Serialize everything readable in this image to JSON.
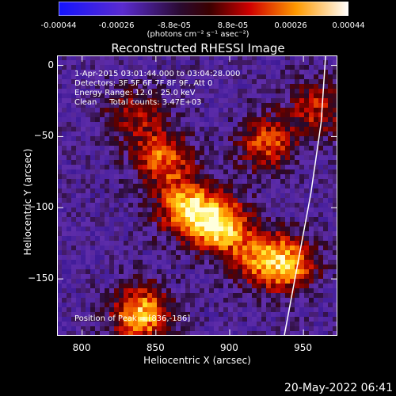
{
  "chart_data": {
    "type": "heatmap",
    "title": "Reconstructed RHESSI Image",
    "xlabel": "Heliocentric X (arcsec)",
    "ylabel": "Heliocentric Y (arcsec)",
    "xlim": [
      783,
      973
    ],
    "ylim": [
      -190,
      7
    ],
    "x_ticks": [
      800,
      850,
      900,
      950
    ],
    "y_ticks": [
      0,
      -50,
      -100,
      -150
    ],
    "colorbar": {
      "ticks": [
        "-0.00044",
        "-0.00026",
        "-8.8e-05",
        "8.8e-05",
        "0.00026",
        "0.00044"
      ],
      "unit_label": "(photons cm⁻² s⁻¹ asec⁻²)"
    },
    "annotations": {
      "time_range": "1-Apr-2015 03:01:44.000 to 03:04:28.000",
      "detectors": "Detectors: 3F 5F 6F 7F 8F 9F, Att 0",
      "energy": "Energy Range: 12.0 - 25.0 keV",
      "method": "Clean     Total counts: 3.47E+03",
      "peak": "Position of Peak = [836,-186]"
    },
    "sources": [
      {
        "x": 893,
        "y": -112,
        "intensity": 1.0
      },
      {
        "x": 870,
        "y": -100,
        "intensity": 0.85
      },
      {
        "x": 840,
        "y": -175,
        "intensity": 0.95
      },
      {
        "x": 855,
        "y": -65,
        "intensity": 0.7
      },
      {
        "x": 940,
        "y": -140,
        "intensity": 0.75
      },
      {
        "x": 920,
        "y": -135,
        "intensity": 0.6
      },
      {
        "x": 925,
        "y": -55,
        "intensity": 0.65
      },
      {
        "x": 960,
        "y": -30,
        "intensity": 0.55
      },
      {
        "x": 835,
        "y": -35,
        "intensity": 0.45
      }
    ],
    "limb_curve": [
      [
        965,
        7
      ],
      [
        962,
        -40
      ],
      [
        955,
        -90
      ],
      [
        946,
        -140
      ],
      [
        937,
        -190
      ]
    ]
  },
  "timestamp": "20-May-2022 06:41"
}
